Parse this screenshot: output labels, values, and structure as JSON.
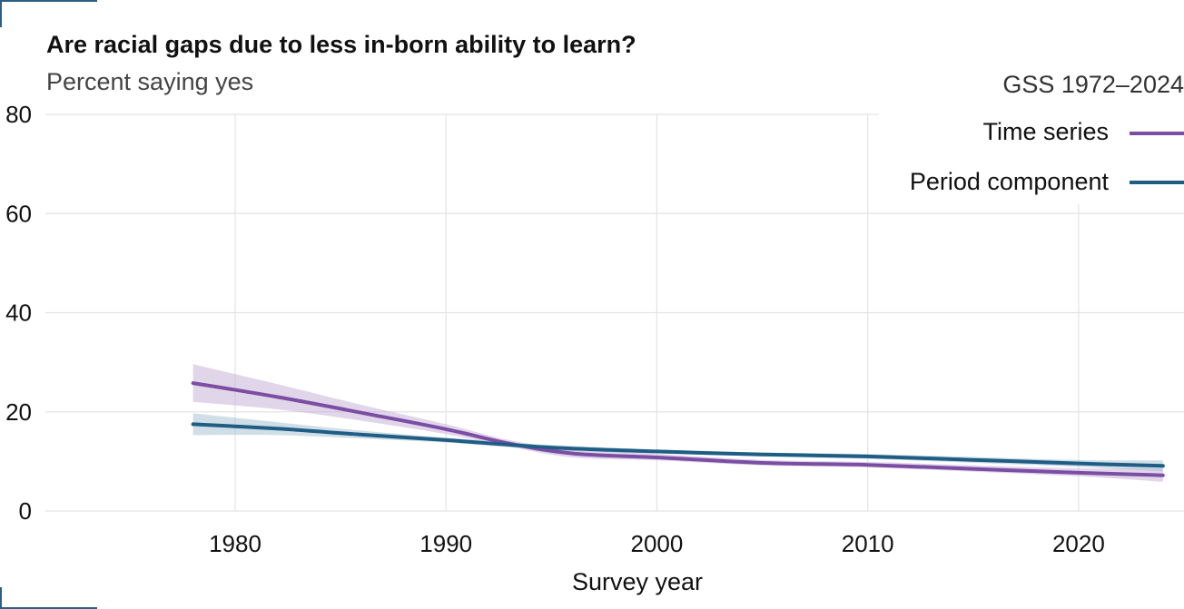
{
  "chart_data": {
    "type": "line",
    "title": "Are racial gaps due to less in-born ability to learn?",
    "subtitle": "Percent saying yes",
    "xlabel": "Survey year",
    "ylabel": "",
    "xlim": [
      1971,
      2025
    ],
    "ylim": [
      0,
      80
    ],
    "x_ticks": [
      1980,
      1990,
      2000,
      2010,
      2020
    ],
    "y_ticks": [
      0,
      20,
      40,
      60,
      80
    ],
    "grid": true,
    "legend": {
      "title": "GSS 1972–2024",
      "placement": "top-right"
    },
    "series": [
      {
        "name": "Time series",
        "color": "#7b4ea3",
        "band_color": "#c9b3d9",
        "x": [
          1978,
          1982,
          1986,
          1990,
          1993,
          1996,
          2000,
          2005,
          2010,
          2015,
          2020,
          2024
        ],
        "y": [
          25.8,
          23.0,
          19.8,
          16.5,
          13.6,
          11.6,
          10.8,
          9.7,
          9.3,
          8.5,
          7.7,
          7.2
        ],
        "lower": [
          22.0,
          20.5,
          18.2,
          15.5,
          13.0,
          10.8,
          10.2,
          9.2,
          8.8,
          7.9,
          7.0,
          5.9
        ],
        "upper": [
          29.6,
          25.6,
          21.4,
          17.5,
          14.3,
          12.4,
          11.5,
          10.3,
          9.9,
          9.2,
          8.6,
          8.6
        ]
      },
      {
        "name": "Period component",
        "color": "#1f5d85",
        "band_color": "#a8c3d3",
        "x": [
          1978,
          1982,
          1986,
          1990,
          1995,
          2000,
          2005,
          2010,
          2015,
          2020,
          2024
        ],
        "y": [
          17.5,
          16.6,
          15.4,
          14.3,
          12.8,
          12.0,
          11.4,
          11.0,
          10.3,
          9.6,
          9.1
        ],
        "lower": [
          15.3,
          15.3,
          14.6,
          13.8,
          12.3,
          11.6,
          11.0,
          10.5,
          9.7,
          8.9,
          8.0
        ],
        "upper": [
          19.7,
          17.9,
          16.2,
          14.8,
          13.3,
          12.4,
          11.8,
          11.5,
          10.9,
          10.3,
          10.2
        ]
      }
    ]
  }
}
